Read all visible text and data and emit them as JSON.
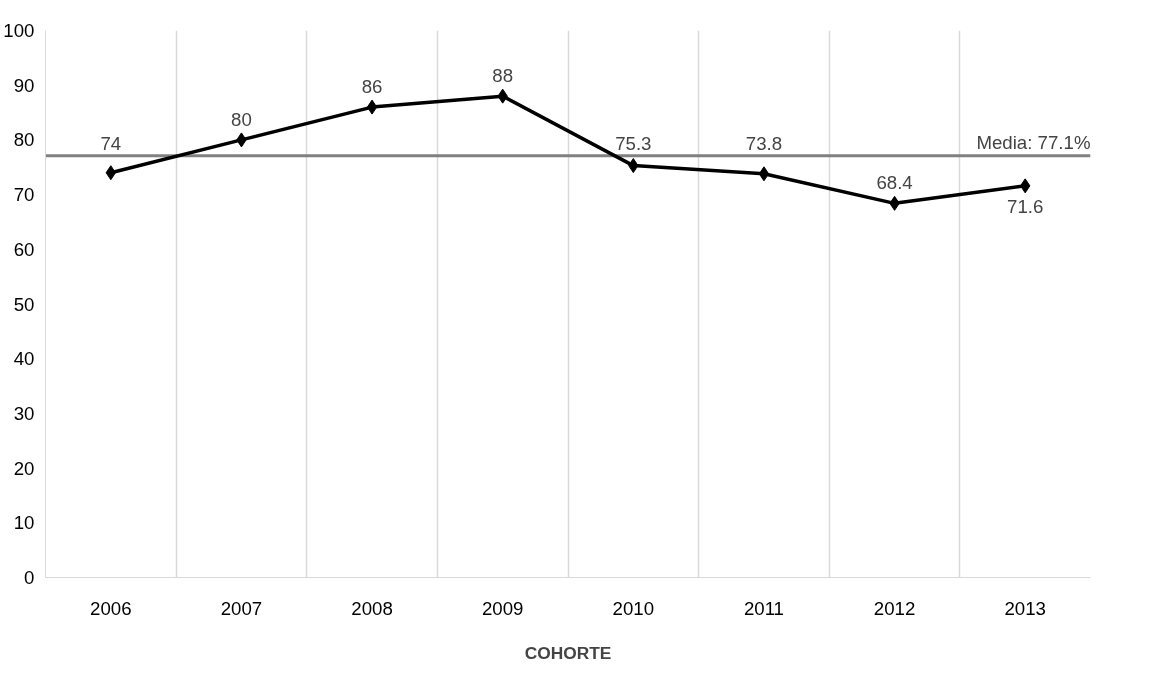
{
  "chart_data": {
    "type": "line",
    "xlabel": "COHORTE",
    "categories": [
      "2006",
      "2007",
      "2008",
      "2009",
      "2010",
      "2011",
      "2012",
      "2013"
    ],
    "series": [
      {
        "color": "#000000",
        "values": [
          74,
          80,
          86,
          88,
          75.3,
          73.8,
          68.4,
          71.6
        ]
      }
    ],
    "ylim": [
      0,
      100
    ],
    "yticks": [
      0,
      10,
      20,
      30,
      40,
      50,
      60,
      70,
      80,
      90,
      100
    ],
    "ref_lines": [
      {
        "axis": "y",
        "value": 77.1,
        "label": "Media: 77.1%",
        "color": "#808080"
      }
    ],
    "data_labels": true,
    "grid": "x",
    "marker": "diamond",
    "line_style": "solid"
  }
}
